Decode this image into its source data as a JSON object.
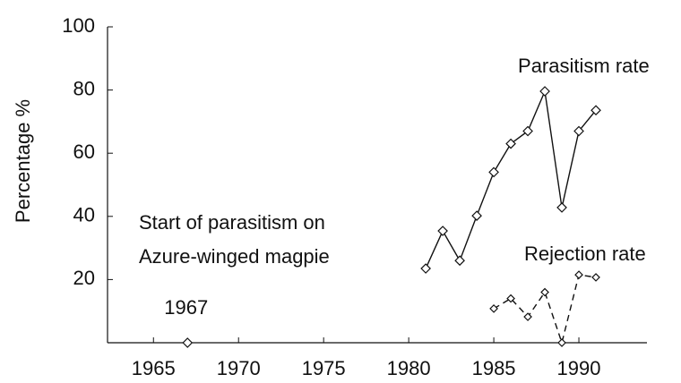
{
  "chart_data": {
    "type": "line",
    "y_label": "Percentage %",
    "xlim": [
      1962.3,
      1994
    ],
    "xticks": [
      1965,
      1970,
      1975,
      1980,
      1985,
      1990
    ],
    "ylim": [
      0,
      100
    ],
    "yticks": [
      20,
      40,
      60,
      80,
      100
    ],
    "series": [
      {
        "name": "Parasitism rate",
        "color": "#111111",
        "dash": false,
        "x": [
          1981,
          1982,
          1983,
          1984,
          1985,
          1986,
          1987,
          1988,
          1989,
          1990,
          1991
        ],
        "values": [
          23.5,
          35.4,
          26,
          40.2,
          54,
          63,
          67,
          79.6,
          42.8,
          67,
          73.6
        ]
      },
      {
        "name": "Rejection rate",
        "color": "#111111",
        "dash": true,
        "x": [
          1985,
          1986,
          1987,
          1988,
          1989,
          1990,
          1991
        ],
        "values": [
          10.8,
          14,
          8.2,
          16,
          0,
          21.5,
          20.7
        ]
      }
    ],
    "start_point": {
      "x": 1967,
      "y": 0,
      "text": [
        "Start of parasitism on",
        "Azure-winged magpie"
      ]
    }
  }
}
